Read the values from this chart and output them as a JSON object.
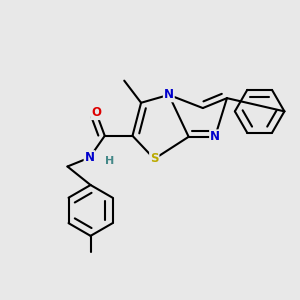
{
  "bg_color": "#e8e8e8",
  "atom_colors": {
    "C": "#000000",
    "N": "#0000cc",
    "O": "#dd0000",
    "S": "#bbaa00",
    "H": "#448888"
  },
  "bond_color": "#000000",
  "bond_lw": 1.5,
  "dbo": 0.018,
  "fs": 8.5
}
